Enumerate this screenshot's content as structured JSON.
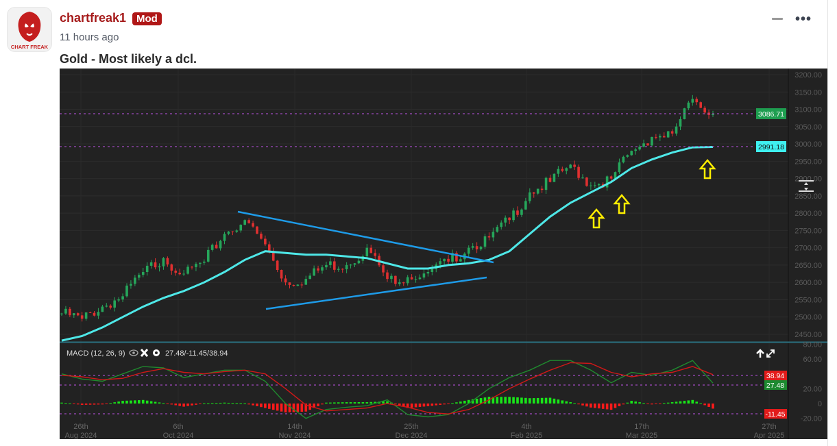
{
  "post": {
    "username": "chartfreak1",
    "badge": "Mod",
    "timestamp": "11 hours ago",
    "title": "Gold - Most likely a dcl.",
    "avatar_text": "CHART FREAK",
    "menu_icons": [
      "minimize-icon",
      "more-options-icon"
    ]
  },
  "colors": {
    "username": "#a51b1b",
    "badge": "#b01717",
    "bull": "#26a65b",
    "bear": "#e03030",
    "moving_average": "#4ee8e8",
    "trendline": "#1e9be8",
    "arrow": "#ffee00",
    "macd": "#1f8a2e",
    "signal": "#d01818"
  },
  "chart_data": [
    {
      "type": "candlestick",
      "yticks": [
        "3200.00",
        "3150.00",
        "3100.00",
        "3050.00",
        "3000.00",
        "2950.00",
        "2900.00",
        "2850.00",
        "2800.00",
        "2750.00",
        "2700.00",
        "2650.00",
        "2600.00",
        "2550.00",
        "2500.00",
        "2450.00"
      ],
      "ylim": [
        2450,
        3200
      ],
      "xticks": [
        {
          "day": "26th",
          "month": "Aug 2024"
        },
        {
          "day": "6th",
          "month": "Oct 2024"
        },
        {
          "day": "14th",
          "month": "Nov 2024"
        },
        {
          "day": "25th",
          "month": "Dec 2024"
        },
        {
          "day": "4th",
          "month": "Feb 2025"
        },
        {
          "day": "17th",
          "month": "Mar 2025"
        },
        {
          "day": "27th",
          "month": "Apr 2025"
        }
      ],
      "dates": [
        "2024-08-19",
        "2024-08-26",
        "2024-09-02",
        "2024-09-09",
        "2024-09-16",
        "2024-09-23",
        "2024-09-30",
        "2024-10-07",
        "2024-10-14",
        "2024-10-21",
        "2024-10-28",
        "2024-11-04",
        "2024-11-11",
        "2024-11-18",
        "2024-11-25",
        "2024-12-02",
        "2024-12-09",
        "2024-12-16",
        "2024-12-23",
        "2024-12-30",
        "2025-01-06",
        "2025-01-13",
        "2025-01-20",
        "2025-01-27",
        "2025-02-03",
        "2025-02-10",
        "2025-02-17",
        "2025-02-24",
        "2025-03-03",
        "2025-03-10",
        "2025-03-17",
        "2025-03-24",
        "2025-03-28"
      ],
      "close": [
        2510,
        2495,
        2530,
        2560,
        2630,
        2670,
        2625,
        2660,
        2740,
        2780,
        2710,
        2600,
        2610,
        2650,
        2650,
        2700,
        2610,
        2615,
        2630,
        2660,
        2700,
        2730,
        2780,
        2860,
        2890,
        2940,
        2880,
        2900,
        2980,
        3020,
        3030,
        3130,
        3086.71
      ],
      "moving_average": [
        2432,
        2445,
        2470,
        2500,
        2530,
        2555,
        2575,
        2600,
        2630,
        2665,
        2690,
        2685,
        2680,
        2680,
        2675,
        2670,
        2655,
        2640,
        2640,
        2650,
        2655,
        2665,
        2690,
        2740,
        2790,
        2830,
        2860,
        2890,
        2930,
        2955,
        2975,
        2990,
        2991.18
      ],
      "price_labels": {
        "last": "3086.71",
        "ma": "2991.18"
      }
    },
    {
      "type": "macd",
      "label": "MACD (12, 26, 9)",
      "values_text": "27.48/-11.45/38.94",
      "yticks": [
        "80.00",
        "60.00",
        "20.00",
        "0",
        "-20.00"
      ],
      "macd": [
        40,
        33,
        30,
        40,
        50,
        48,
        35,
        40,
        45,
        45,
        30,
        0,
        -20,
        -8,
        -5,
        -3,
        5,
        -15,
        -18,
        -15,
        0,
        20,
        35,
        45,
        58,
        58,
        45,
        28,
        42,
        38,
        45,
        58,
        27.48
      ],
      "signal": [
        38,
        36,
        32,
        34,
        42,
        47,
        42,
        40,
        43,
        45,
        40,
        20,
        -2,
        -10,
        -8,
        -6,
        0,
        -5,
        -12,
        -14,
        -8,
        5,
        20,
        33,
        45,
        55,
        54,
        42,
        36,
        40,
        42,
        50,
        38.94
      ],
      "labels": {
        "macd": "27.48",
        "signal": "38.94",
        "histogram": "-11.45"
      }
    }
  ]
}
